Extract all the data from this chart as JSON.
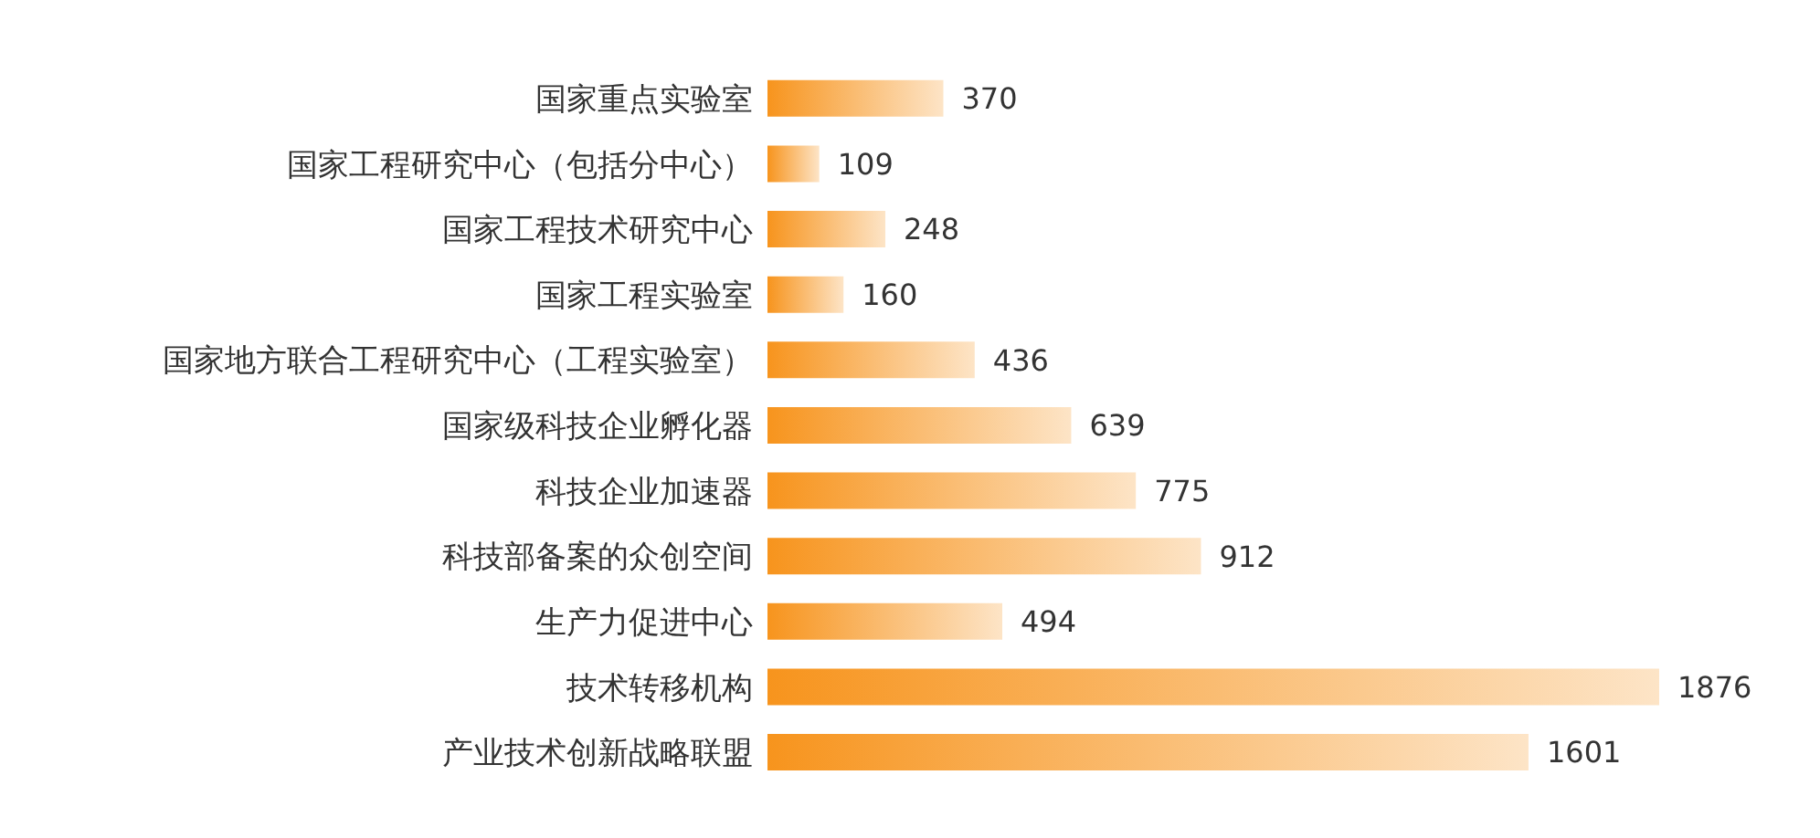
{
  "chart_data": {
    "type": "bar",
    "orientation": "horizontal",
    "categories": [
      "国家重点实验室",
      "国家工程研究中心（包括分中心）",
      "国家工程技术研究中心",
      "国家工程实验室",
      "国家地方联合工程研究中心（工程实验室）",
      "国家级科技企业孵化器",
      "科技企业加速器",
      "科技部备案的众创空间",
      "生产力促进中心",
      "技术转移机构",
      "产业技术创新战略联盟"
    ],
    "values": [
      370,
      109,
      248,
      160,
      436,
      639,
      775,
      912,
      494,
      1876,
      1601
    ],
    "color": "#f7941d",
    "data_labels": true,
    "tick_labels": "y"
  }
}
